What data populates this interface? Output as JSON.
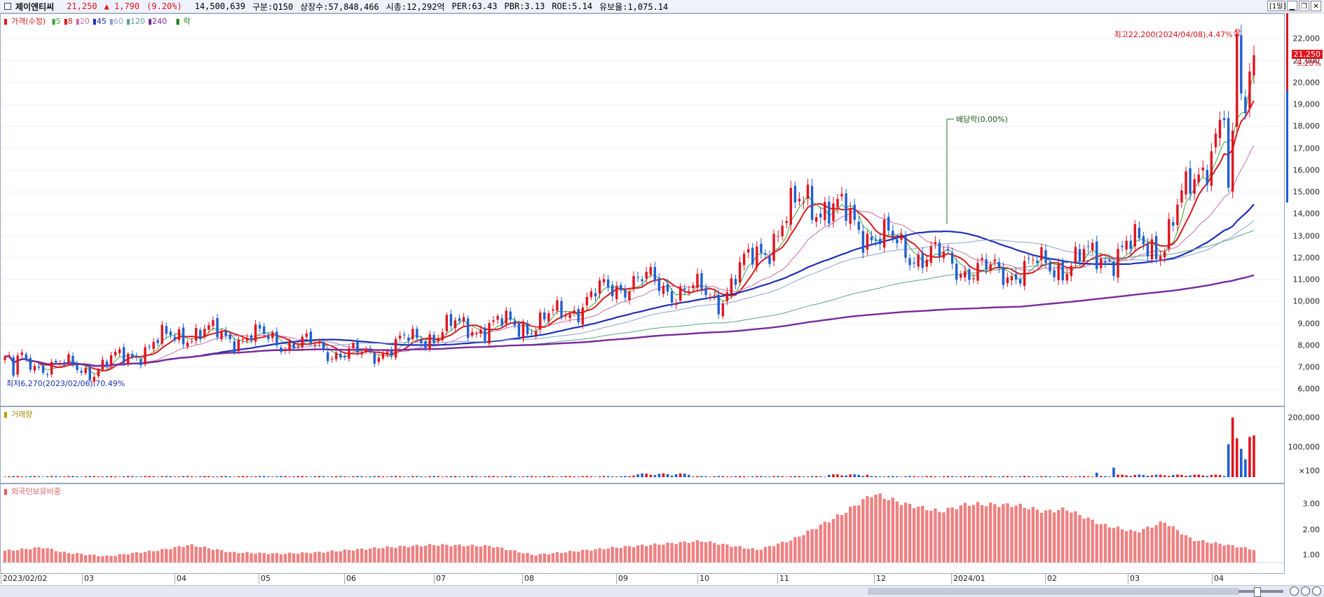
{
  "header": {
    "stock_name": "제이엔티씨",
    "price": "21,250",
    "change": "▲ 1,790",
    "change_pct": "(9.20%)",
    "volume": "14,500,639",
    "market": "구분:Q150",
    "shares": "상장수:57,848,466",
    "market_cap": "시총:12,292억",
    "per": "PER:63.43",
    "pbr": "PBR:3.13",
    "roe": "ROE:5.14",
    "float_ratio": "유보율:1,075.14",
    "period_button": "[1일]"
  },
  "price_pane": {
    "legend_title": "가격(수정)",
    "ma_labels": [
      "5",
      "8",
      "20",
      "45",
      "60",
      "120",
      "240"
    ],
    "ma_colors": [
      "#3aa43a",
      "#d81b1b",
      "#c86fa8",
      "#1f2fb4",
      "#8aa2d4",
      "#5aa48f",
      "#7a2a9c"
    ],
    "ex_dividend_legend": "락",
    "high_annotation": "최고22,200(2024/04/08),4.47%",
    "high_marker": "상",
    "low_annotation": "최저6,270(2023/02/06),70.49%",
    "ex_dividend_annotation": "배당락(0.00%)",
    "current_price_tag": "21,250",
    "current_pct_tag": "9.20%",
    "y_ticks": [
      "22,000",
      "21,000",
      "20,000",
      "19,000",
      "18,000",
      "17,000",
      "16,000",
      "15,000",
      "14,000",
      "13,000",
      "12,000",
      "11,000",
      "10,000",
      "9,000",
      "8,000",
      "7,000",
      "6,000"
    ]
  },
  "volume_pane": {
    "title": "거래량",
    "y_ticks": [
      "200,000",
      "100,000",
      "×100"
    ]
  },
  "foreign_pane": {
    "title": "외국인보유비중",
    "y_ticks": [
      "3.00",
      "2.00",
      "1.00"
    ]
  },
  "x_axis": {
    "labels": [
      "2023/02/02",
      "03",
      "04",
      "05",
      "06",
      "07",
      "08",
      "09",
      "10",
      "11",
      "12",
      "2024/01",
      "02",
      "03",
      "04"
    ]
  },
  "colors": {
    "up": "#e0141e",
    "down": "#1f5fd0",
    "foreign_bar": "#f08080",
    "high_text": "#d0141e"
  },
  "chart_data": {
    "type": "candlestick",
    "period": "daily",
    "x_range": [
      "2023/02/02",
      "2024/04/10"
    ],
    "y_range": [
      5600,
      23000
    ],
    "monthly_close_approx": [
      {
        "month": "2023/02",
        "close": 7300
      },
      {
        "month": "2023/03",
        "close": 6900
      },
      {
        "month": "2023/04",
        "close": 8600
      },
      {
        "month": "2023/05",
        "close": 8300
      },
      {
        "month": "2023/06",
        "close": 7500
      },
      {
        "month": "2023/07",
        "close": 8800
      },
      {
        "month": "2023/08",
        "close": 9000
      },
      {
        "month": "2023/09",
        "close": 11000
      },
      {
        "month": "2023/10",
        "close": 10200
      },
      {
        "month": "2023/11",
        "close": 14800
      },
      {
        "month": "2023/12",
        "close": 12500
      },
      {
        "month": "2024/01",
        "close": 11300
      },
      {
        "month": "2024/02",
        "close": 11800
      },
      {
        "month": "2024/03",
        "close": 12800
      },
      {
        "month": "2024/04",
        "close": 21250
      }
    ],
    "high": {
      "value": 22200,
      "date": "2024/04/08"
    },
    "low": {
      "value": 6270,
      "date": "2023/02/06"
    },
    "last": 21250,
    "volume_peak": 200000,
    "foreign_ratio_range": [
      0.5,
      3.4
    ]
  }
}
